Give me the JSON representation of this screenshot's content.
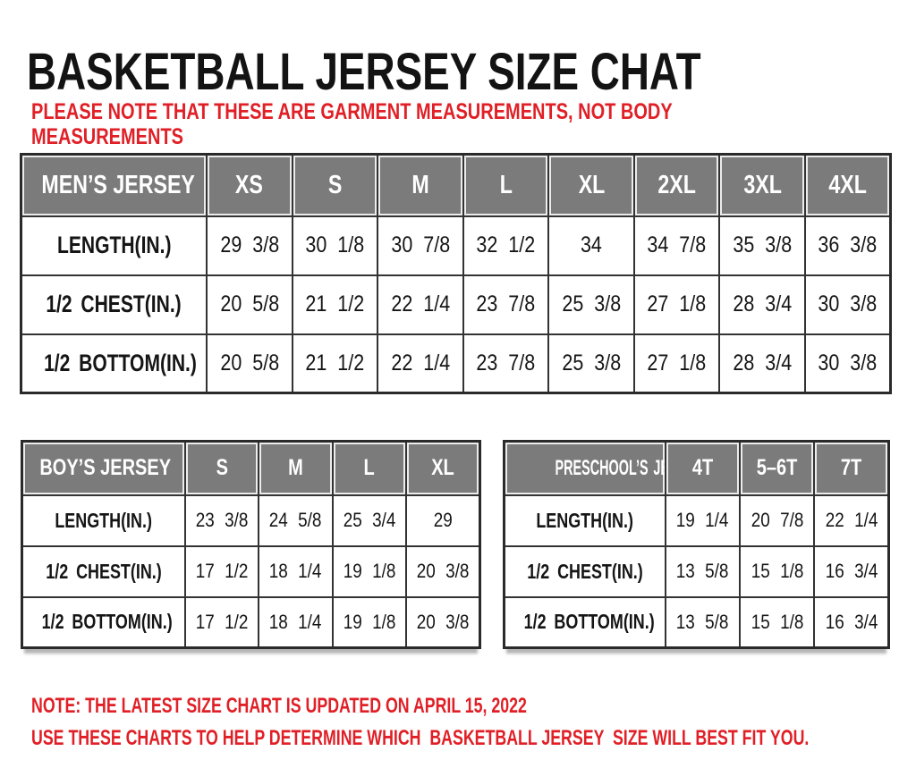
{
  "page": {
    "title": "BASKETBALL JERSEY SIZE CHAT",
    "disclaimer": "PLEASE NOTE THAT THESE ARE GARMENT MEASUREMENTS, NOT BODY MEASUREMENTS",
    "notes": [
      "NOTE: THE LATEST SIZE CHART IS UPDATED ON APRIL 15, 2022",
      "USE THESE CHARTS TO HELP DETERMINE WHICH  BASKETBALL JERSEY  SIZE WILL BEST FIT YOU."
    ]
  },
  "tables": {
    "mens": {
      "header": [
        "MEN’S JERSEY",
        "XS",
        "S",
        "M",
        "L",
        "XL",
        "2XL",
        "3XL",
        "4XL"
      ],
      "rows": [
        {
          "label": "LENGTH(IN.)",
          "values": [
            "29 3/8",
            "30 1/8",
            "30 7/8",
            "32 1/2",
            "34",
            "34 7/8",
            "35 3/8",
            "36 3/8"
          ]
        },
        {
          "label": "1/2 CHEST(IN.)",
          "values": [
            "20 5/8",
            "21 1/2",
            "22 1/4",
            "23 7/8",
            "25 3/8",
            "27 1/8",
            "28 3/4",
            "30 3/8"
          ]
        },
        {
          "label": "1/2 BOTTOM(IN.)",
          "values": [
            "20 5/8",
            "21 1/2",
            "22 1/4",
            "23 7/8",
            "25 3/8",
            "27 1/8",
            "28 3/4",
            "30 3/8"
          ]
        }
      ]
    },
    "boys": {
      "header": [
        "BOY’S JERSEY",
        "S",
        "M",
        "L",
        "XL"
      ],
      "rows": [
        {
          "label": "LENGTH(IN.)",
          "values": [
            "23 3/8",
            "24 5/8",
            "25 3/4",
            "29"
          ]
        },
        {
          "label": "1/2 CHEST(IN.)",
          "values": [
            "17 1/2",
            "18 1/4",
            "19 1/8",
            "20 3/8"
          ]
        },
        {
          "label": "1/2 BOTTOM(IN.)",
          "values": [
            "17 1/2",
            "18 1/4",
            "19 1/8",
            "20 3/8"
          ]
        }
      ]
    },
    "preschool": {
      "header": [
        "PRESCHOOL’S JERSEY",
        "4T",
        "5–6T",
        "7T"
      ],
      "rows": [
        {
          "label": "LENGTH(IN.)",
          "values": [
            "19 1/4",
            "20 7/8",
            "22 1/4"
          ]
        },
        {
          "label": "1/2 CHEST(IN.)",
          "values": [
            "13 5/8",
            "15 1/8",
            "16 3/4"
          ]
        },
        {
          "label": "1/2 BOTTOM(IN.)",
          "values": [
            "13 5/8",
            "15 1/8",
            "16 3/4"
          ]
        }
      ]
    }
  },
  "colors": {
    "accent_red": "#e01f26",
    "header_gray": "#7b7b7b",
    "border_dark": "#333333"
  }
}
